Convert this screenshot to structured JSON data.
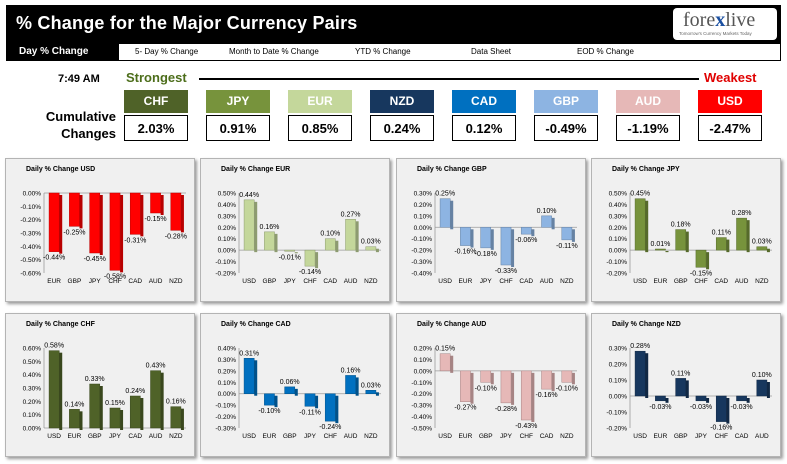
{
  "header": {
    "title": "% Change for the Major Currency Pairs",
    "logo_pre": "fore",
    "logo_x": "x",
    "logo_post": "live",
    "logo_tagline": "Tomorrow's Currency Markets Today"
  },
  "nav": [
    {
      "label": "Day % Change",
      "active": true
    },
    {
      "label": "5- Day % Change"
    },
    {
      "label": "Month to Date % Change"
    },
    {
      "label": "YTD % Change"
    },
    {
      "label": "Data Sheet"
    },
    {
      "label": "EOD % Change"
    }
  ],
  "time": "7:49 AM",
  "strongest_label": "Strongest",
  "weakest_label": "Weakest",
  "cumulative_label": "Cumulative Changes",
  "tiles": [
    {
      "code": "CHF",
      "value": "2.03%",
      "color": "#4f6228"
    },
    {
      "code": "JPY",
      "value": "0.91%",
      "color": "#77933c"
    },
    {
      "code": "EUR",
      "value": "0.85%",
      "color": "#c4d79b"
    },
    {
      "code": "NZD",
      "value": "0.24%",
      "color": "#17375e"
    },
    {
      "code": "CAD",
      "value": "0.12%",
      "color": "#0070c0"
    },
    {
      "code": "GBP",
      "value": "-0.49%",
      "color": "#8db4e2"
    },
    {
      "code": "AUD",
      "value": "-1.19%",
      "color": "#e6b8b7"
    },
    {
      "code": "USD",
      "value": "-2.47%",
      "color": "#ff0000"
    }
  ],
  "chart_data": [
    {
      "type": "bar",
      "title": "Daily % Change USD",
      "color": "#ff0000",
      "categories": [
        "EUR",
        "GBP",
        "JPY",
        "CHF",
        "CAD",
        "AUD",
        "NZD"
      ],
      "values": [
        -0.44,
        -0.25,
        -0.45,
        -0.58,
        -0.31,
        -0.15,
        -0.28
      ],
      "labels": [
        "-0.44%",
        "-0.25%",
        "-0.45%",
        "-0.58%",
        "-0.31%",
        "-0.15%",
        "-0.28%"
      ],
      "ylim": [
        -0.6,
        0
      ],
      "yticks": [
        "0.00%",
        "-0.10%",
        "-0.20%",
        "-0.30%",
        "-0.40%",
        "-0.50%",
        "-0.60%"
      ]
    },
    {
      "type": "bar",
      "title": "Daily % Change EUR",
      "color": "#c4d79b",
      "categories": [
        "USD",
        "GBP",
        "JPY",
        "CHF",
        "CAD",
        "AUD",
        "NZD"
      ],
      "values": [
        0.44,
        0.16,
        -0.01,
        -0.14,
        0.1,
        0.27,
        0.03
      ],
      "labels": [
        "0.44%",
        "0.16%",
        "-0.01%",
        "-0.14%",
        "0.10%",
        "0.27%",
        "0.03%"
      ],
      "ylim": [
        -0.2,
        0.5
      ],
      "yticks": [
        "0.50%",
        "0.40%",
        "0.30%",
        "0.20%",
        "0.10%",
        "0.00%",
        "-0.10%",
        "-0.20%"
      ]
    },
    {
      "type": "bar",
      "title": "Daily % Change GBP",
      "color": "#8db4e2",
      "categories": [
        "USD",
        "EUR",
        "JPY",
        "CHF",
        "CAD",
        "AUD",
        "NZD"
      ],
      "values": [
        0.25,
        -0.16,
        -0.18,
        -0.33,
        -0.06,
        0.1,
        -0.11
      ],
      "labels": [
        "0.25%",
        "-0.16%",
        "-0.18%",
        "-0.33%",
        "-0.06%",
        "0.10%",
        "-0.11%"
      ],
      "ylim": [
        -0.4,
        0.3
      ],
      "yticks": [
        "0.30%",
        "0.20%",
        "0.10%",
        "0.00%",
        "-0.10%",
        "-0.20%",
        "-0.30%",
        "-0.40%"
      ]
    },
    {
      "type": "bar",
      "title": "Daily % Change JPY",
      "color": "#77933c",
      "categories": [
        "USD",
        "EUR",
        "GBP",
        "CHF",
        "CAD",
        "AUD",
        "NZD"
      ],
      "values": [
        0.45,
        0.01,
        0.18,
        -0.15,
        0.11,
        0.28,
        0.03
      ],
      "labels": [
        "0.45%",
        "0.01%",
        "0.18%",
        "-0.15%",
        "0.11%",
        "0.28%",
        "0.03%"
      ],
      "ylim": [
        -0.2,
        0.5
      ],
      "yticks": [
        "0.50%",
        "0.40%",
        "0.30%",
        "0.20%",
        "0.10%",
        "0.00%",
        "-0.10%",
        "-0.20%"
      ]
    },
    {
      "type": "bar",
      "title": "Daily % Change CHF",
      "color": "#4f6228",
      "categories": [
        "USD",
        "EUR",
        "GBP",
        "JPY",
        "CAD",
        "AUD",
        "NZD"
      ],
      "values": [
        0.58,
        0.14,
        0.33,
        0.15,
        0.24,
        0.43,
        0.16
      ],
      "labels": [
        "0.58%",
        "0.14%",
        "0.33%",
        "0.15%",
        "0.24%",
        "0.43%",
        "0.16%"
      ],
      "ylim": [
        0,
        0.6
      ],
      "yticks": [
        "0.60%",
        "0.50%",
        "0.40%",
        "0.30%",
        "0.20%",
        "0.10%",
        "0.00%"
      ]
    },
    {
      "type": "bar",
      "title": "Daily % Change CAD",
      "color": "#0070c0",
      "categories": [
        "USD",
        "EUR",
        "GBP",
        "JPY",
        "CHF",
        "AUD",
        "NZD"
      ],
      "values": [
        0.31,
        -0.1,
        0.06,
        -0.11,
        -0.24,
        0.16,
        0.03
      ],
      "labels": [
        "0.31%",
        "-0.10%",
        "0.06%",
        "-0.11%",
        "-0.24%",
        "0.16%",
        "0.03%"
      ],
      "ylim": [
        -0.3,
        0.4
      ],
      "yticks": [
        "0.40%",
        "0.30%",
        "0.20%",
        "0.10%",
        "0.00%",
        "-0.10%",
        "-0.20%",
        "-0.30%"
      ]
    },
    {
      "type": "bar",
      "title": "Daily % Change AUD",
      "color": "#e6b8b7",
      "categories": [
        "USD",
        "EUR",
        "GBP",
        "JPY",
        "CHF",
        "CAD",
        "NZD"
      ],
      "values": [
        0.15,
        -0.27,
        -0.1,
        -0.28,
        -0.43,
        -0.16,
        -0.1
      ],
      "labels": [
        "0.15%",
        "-0.27%",
        "-0.10%",
        "-0.28%",
        "-0.43%",
        "-0.16%",
        "-0.10%"
      ],
      "ylim": [
        -0.5,
        0.2
      ],
      "yticks": [
        "0.20%",
        "0.10%",
        "0.00%",
        "-0.10%",
        "-0.20%",
        "-0.30%",
        "-0.40%",
        "-0.50%"
      ]
    },
    {
      "type": "bar",
      "title": "Daily % Change NZD",
      "color": "#17375e",
      "categories": [
        "USD",
        "EUR",
        "GBP",
        "JPY",
        "CHF",
        "CAD",
        "AUD"
      ],
      "values": [
        0.28,
        -0.03,
        0.11,
        -0.03,
        -0.16,
        -0.03,
        0.1
      ],
      "labels": [
        "0.28%",
        "-0.03%",
        "0.11%",
        "-0.03%",
        "-0.16%",
        "-0.03%",
        "0.10%"
      ],
      "ylim": [
        -0.2,
        0.3
      ],
      "yticks": [
        "0.30%",
        "0.20%",
        "0.10%",
        "0.00%",
        "-0.10%",
        "-0.20%"
      ]
    }
  ]
}
